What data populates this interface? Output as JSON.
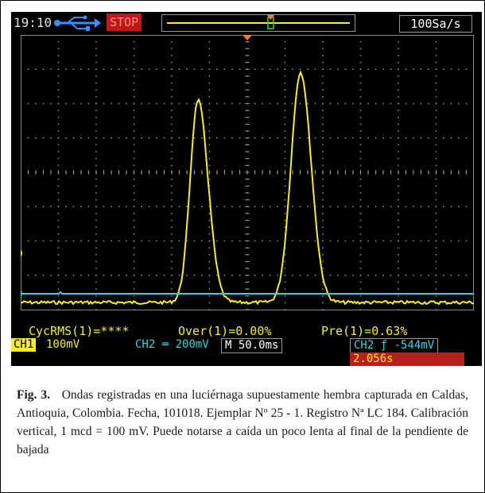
{
  "status": {
    "time": "19:10",
    "run_state": "STOP",
    "sample_rate": "100Sa/s"
  },
  "measurements": {
    "cyc_rms": "CycRMS(1)=****",
    "overshoot": "Over(1)=0.00%",
    "preshoot": "Pre(1)=0.63%"
  },
  "channels": {
    "ch1_label": "CH1",
    "ch1_scale": "100mV",
    "ch2_label": "CH2",
    "ch2_scale": "200mV",
    "ch1_marker": "1",
    "ch2_marker": "2"
  },
  "timebase": "M 50.0ms",
  "trigger": {
    "readout": "CH2 ƒ -544mV",
    "frequency": "2.056s"
  },
  "caption": {
    "label": "Fig. 3.",
    "text": "Ondas registradas en una luciérnaga supuestamente hembra capturada en Caldas, Antioquia, Colombia. Fecha, 101018. Ejemplar Nº 25 - 1. Registro Nª LC 184. Calibración vertical, 1 mcd = 100 mV. Puede notarse a caída un poco lenta al final de la pendiente de bajada"
  },
  "colors": {
    "ch1": "#f5ee2a",
    "ch2": "#2fd6e0",
    "stop": "#c01818",
    "grid": "#8a8a8a"
  }
}
